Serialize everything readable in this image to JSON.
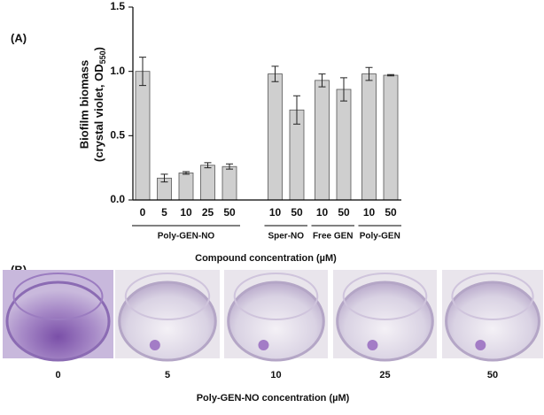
{
  "chart_data": {
    "type": "bar",
    "panel_label": "(A)",
    "y_label": {
      "line1": "Biofilm biomass",
      "line2": "(crystal violet, OD",
      "subscript": "550",
      "close": ")"
    },
    "x_label": "Compound concentration (µM)",
    "categories": [
      "0",
      "5",
      "10",
      "25",
      "50",
      "10",
      "50",
      "10",
      "50",
      "10",
      "50"
    ],
    "groups": [
      {
        "name": "Poly-GEN-NO",
        "start": 0,
        "end": 4
      },
      {
        "name": "Sper-NO",
        "start": 5,
        "end": 6
      },
      {
        "name": "Free GEN",
        "start": 7,
        "end": 8
      },
      {
        "name": "Poly-GEN",
        "start": 9,
        "end": 10
      }
    ],
    "values": [
      1.0,
      0.17,
      0.21,
      0.27,
      0.26,
      0.98,
      0.7,
      0.93,
      0.86,
      0.98,
      0.97
    ],
    "errors": [
      0.11,
      0.03,
      0.01,
      0.02,
      0.02,
      0.06,
      0.11,
      0.05,
      0.09,
      0.05,
      0.005
    ],
    "color": "#cfcfcf",
    "ylim": [
      0,
      1.5
    ],
    "yticks": [
      {
        "value": 0,
        "label": "0.0"
      },
      {
        "value": 0.5,
        "label": "0.5"
      },
      {
        "value": 1,
        "label": "1.0"
      },
      {
        "value": 1.5,
        "label": "1.5"
      }
    ]
  },
  "panel_b": {
    "panel_label": "(B)",
    "labels": [
      "0",
      "5",
      "10",
      "25",
      "50"
    ],
    "caption": "Poly-GEN-NO concentration (µM)"
  }
}
